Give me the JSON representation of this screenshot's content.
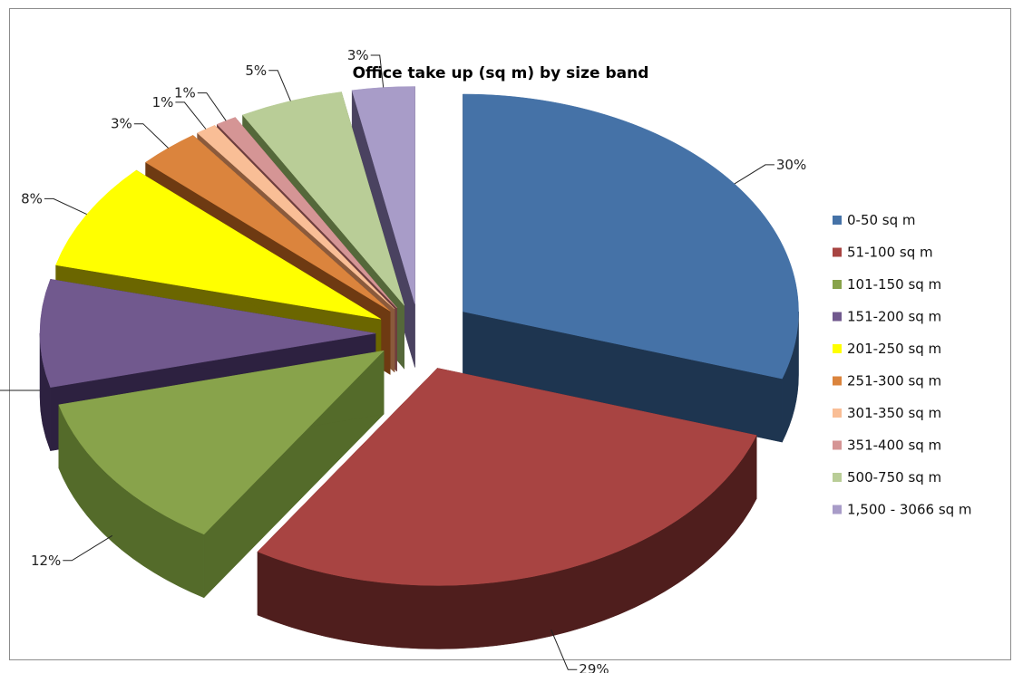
{
  "chart_data": {
    "type": "pie",
    "variant": "3d-exploded",
    "title": "Office take up (sq m) by size band",
    "legend_position": "right",
    "slices": [
      {
        "label": "0-50 sq m",
        "value": 30,
        "data_label": "30%",
        "color": "#4572A7",
        "dark": "#1E3550"
      },
      {
        "label": "51-100 sq m",
        "value": 29,
        "data_label": "29%",
        "color": "#A84442",
        "dark": "#4F1E1D"
      },
      {
        "label": "101-150 sq m",
        "value": 12,
        "data_label": "12%",
        "color": "#88A34B",
        "dark": "#546B2A"
      },
      {
        "label": "151-200 sq m",
        "value": 8,
        "data_label": "8%",
        "color": "#71598E",
        "dark": "#2D2140"
      },
      {
        "label": "201-250 sq m",
        "value": 8,
        "data_label": "8%",
        "color": "#FFFF00",
        "dark": "#6B6600"
      },
      {
        "label": "251-300 sq m",
        "value": 3,
        "data_label": "3%",
        "color": "#DB843D",
        "dark": "#6E3A12"
      },
      {
        "label": "301-350 sq m",
        "value": 1,
        "data_label": "1%",
        "color": "#F9BE96",
        "dark": "#8A5A3C"
      },
      {
        "label": "351-400 sq m",
        "value": 1,
        "data_label": "1%",
        "color": "#D59595",
        "dark": "#6E3E3E"
      },
      {
        "label": "500-750 sq m",
        "value": 5,
        "data_label": "5%",
        "color": "#B9CD97",
        "dark": "#55683A"
      },
      {
        "label": "1,500 - 3066 sq m",
        "value": 3,
        "data_label": "3%",
        "color": "#A89CC8",
        "dark": "#4A4260"
      }
    ]
  }
}
